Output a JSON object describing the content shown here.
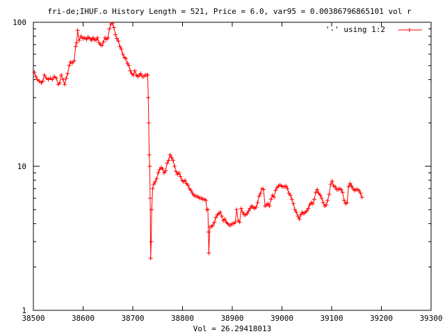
{
  "chart_data": {
    "type": "line",
    "title": "fri-de;IHUF.o History Length = 521, Price = 6.0, var95 = 0.00386796865101 vol r",
    "xlabel": "Vol = 26.29418013",
    "ylabel": "",
    "yscale": "log",
    "xlim": [
      38500,
      39300
    ],
    "ylim": [
      1,
      100
    ],
    "x_ticks": [
      "38500",
      "38600",
      "38700",
      "38800",
      "38900",
      "39000",
      "39100",
      "39200",
      "39300"
    ],
    "y_ticks": [
      "1",
      "10",
      "100"
    ],
    "grid": false,
    "legend_position": "top-right",
    "series": [
      {
        "name": "'-' using 1:2",
        "color": "#ff0000",
        "marker": "plus",
        "points": [
          [
            38502,
            45
          ],
          [
            38505,
            42
          ],
          [
            38508,
            40
          ],
          [
            38512,
            39
          ],
          [
            38516,
            38
          ],
          [
            38519,
            39
          ],
          [
            38522,
            43
          ],
          [
            38526,
            41
          ],
          [
            38530,
            40
          ],
          [
            38534,
            41
          ],
          [
            38538,
            40
          ],
          [
            38542,
            42
          ],
          [
            38546,
            41
          ],
          [
            38550,
            37
          ],
          [
            38553,
            38
          ],
          [
            38556,
            43
          ],
          [
            38560,
            40
          ],
          [
            38563,
            37
          ],
          [
            38566,
            41
          ],
          [
            38569,
            44
          ],
          [
            38572,
            50
          ],
          [
            38575,
            53
          ],
          [
            38578,
            52
          ],
          [
            38582,
            54
          ],
          [
            38585,
            68
          ],
          [
            38587,
            72
          ],
          [
            38589,
            88
          ],
          [
            38592,
            75
          ],
          [
            38596,
            80
          ],
          [
            38600,
            77
          ],
          [
            38603,
            78
          ],
          [
            38607,
            76
          ],
          [
            38610,
            79
          ],
          [
            38614,
            77
          ],
          [
            38617,
            75
          ],
          [
            38620,
            78
          ],
          [
            38623,
            76
          ],
          [
            38626,
            75
          ],
          [
            38629,
            78
          ],
          [
            38632,
            72
          ],
          [
            38635,
            70
          ],
          [
            38638,
            69
          ],
          [
            38641,
            73
          ],
          [
            38644,
            78
          ],
          [
            38647,
            76
          ],
          [
            38650,
            78
          ],
          [
            38653,
            90
          ],
          [
            38656,
            97
          ],
          [
            38659,
            98
          ],
          [
            38662,
            92
          ],
          [
            38665,
            82
          ],
          [
            38668,
            77
          ],
          [
            38671,
            74
          ],
          [
            38674,
            68
          ],
          [
            38677,
            65
          ],
          [
            38680,
            60
          ],
          [
            38683,
            57
          ],
          [
            38686,
            56
          ],
          [
            38689,
            52
          ],
          [
            38692,
            50
          ],
          [
            38695,
            46
          ],
          [
            38698,
            44
          ],
          [
            38701,
            43
          ],
          [
            38704,
            46
          ],
          [
            38707,
            43
          ],
          [
            38710,
            42
          ],
          [
            38713,
            43
          ],
          [
            38716,
            44
          ],
          [
            38719,
            42
          ],
          [
            38722,
            42
          ],
          [
            38725,
            43
          ],
          [
            38728,
            43
          ],
          [
            38730,
            43
          ],
          [
            38731,
            30
          ],
          [
            38732,
            20
          ],
          [
            38733,
            12
          ],
          [
            38734,
            10
          ],
          [
            38735,
            6
          ],
          [
            38736,
            2.3
          ],
          [
            38737,
            3
          ],
          [
            38738,
            5
          ],
          [
            38740,
            7
          ],
          [
            38742,
            7.5
          ],
          [
            38745,
            7.8
          ],
          [
            38748,
            8.2
          ],
          [
            38751,
            9
          ],
          [
            38754,
            9.5
          ],
          [
            38757,
            9.8
          ],
          [
            38760,
            9.6
          ],
          [
            38763,
            9
          ],
          [
            38766,
            9.3
          ],
          [
            38769,
            10.5
          ],
          [
            38772,
            11
          ],
          [
            38775,
            12
          ],
          [
            38778,
            11.5
          ],
          [
            38781,
            11
          ],
          [
            38784,
            10
          ],
          [
            38787,
            9.2
          ],
          [
            38790,
            8.8
          ],
          [
            38793,
            9
          ],
          [
            38796,
            8.5
          ],
          [
            38799,
            8
          ],
          [
            38802,
            7.8
          ],
          [
            38805,
            8
          ],
          [
            38808,
            7.6
          ],
          [
            38811,
            7.4
          ],
          [
            38814,
            7
          ],
          [
            38817,
            6.8
          ],
          [
            38820,
            6.5
          ],
          [
            38823,
            6.3
          ],
          [
            38826,
            6.2
          ],
          [
            38829,
            6.2
          ],
          [
            38832,
            6.1
          ],
          [
            38835,
            6
          ],
          [
            38838,
            6
          ],
          [
            38841,
            5.9
          ],
          [
            38844,
            5.9
          ],
          [
            38847,
            5.8
          ],
          [
            38849,
            5
          ],
          [
            38851,
            5
          ],
          [
            38852,
            3.5
          ],
          [
            38853,
            2.5
          ],
          [
            38855,
            3.8
          ],
          [
            38858,
            3.8
          ],
          [
            38861,
            3.9
          ],
          [
            38864,
            4.1
          ],
          [
            38867,
            4.4
          ],
          [
            38870,
            4.6
          ],
          [
            38873,
            4.7
          ],
          [
            38876,
            4.8
          ],
          [
            38879,
            4.5
          ],
          [
            38882,
            4.2
          ],
          [
            38885,
            4.3
          ],
          [
            38888,
            4.1
          ],
          [
            38891,
            4
          ],
          [
            38894,
            3.9
          ],
          [
            38897,
            3.9
          ],
          [
            38900,
            4
          ],
          [
            38903,
            4
          ],
          [
            38906,
            4.1
          ],
          [
            38909,
            5
          ],
          [
            38912,
            4.2
          ],
          [
            38915,
            4.1
          ],
          [
            38918,
            5.1
          ],
          [
            38921,
            4.8
          ],
          [
            38924,
            4.6
          ],
          [
            38927,
            4.6
          ],
          [
            38930,
            4.7
          ],
          [
            38933,
            4.9
          ],
          [
            38936,
            5.1
          ],
          [
            38939,
            5.3
          ],
          [
            38942,
            5.2
          ],
          [
            38945,
            5.1
          ],
          [
            38948,
            5.2
          ],
          [
            38951,
            5.6
          ],
          [
            38954,
            6.2
          ],
          [
            38957,
            6.5
          ],
          [
            38960,
            7
          ],
          [
            38963,
            6.9
          ],
          [
            38966,
            5.3
          ],
          [
            38969,
            5.4
          ],
          [
            38972,
            5.5
          ],
          [
            38975,
            5.3
          ],
          [
            38978,
            5.9
          ],
          [
            38981,
            6.3
          ],
          [
            38984,
            6.1
          ],
          [
            38987,
            6.8
          ],
          [
            38990,
            7.1
          ],
          [
            38993,
            7.3
          ],
          [
            38996,
            7.4
          ],
          [
            38999,
            7.3
          ],
          [
            39002,
            7.2
          ],
          [
            39005,
            7.2
          ],
          [
            39008,
            7.3
          ],
          [
            39011,
            7
          ],
          [
            39014,
            6.5
          ],
          [
            39017,
            6.3
          ],
          [
            39020,
            5.9
          ],
          [
            39023,
            5.5
          ],
          [
            39026,
            5
          ],
          [
            39029,
            4.8
          ],
          [
            39032,
            4.5
          ],
          [
            39035,
            4.3
          ],
          [
            39038,
            4.6
          ],
          [
            39041,
            4.8
          ],
          [
            39044,
            4.7
          ],
          [
            39047,
            4.8
          ],
          [
            39050,
            4.9
          ],
          [
            39053,
            5.1
          ],
          [
            39056,
            5.4
          ],
          [
            39059,
            5.6
          ],
          [
            39062,
            5.5
          ],
          [
            39065,
            5.9
          ],
          [
            39068,
            6.6
          ],
          [
            39071,
            6.9
          ],
          [
            39074,
            6.5
          ],
          [
            39077,
            6.3
          ],
          [
            39080,
            6
          ],
          [
            39083,
            5.6
          ],
          [
            39086,
            5.3
          ],
          [
            39089,
            5.4
          ],
          [
            39092,
            5.8
          ],
          [
            39095,
            6.4
          ],
          [
            39098,
            7.5
          ],
          [
            39101,
            7.9
          ],
          [
            39104,
            7.3
          ],
          [
            39107,
            7.2
          ],
          [
            39110,
            6.9
          ],
          [
            39113,
            6.9
          ],
          [
            39116,
            7
          ],
          [
            39119,
            6.9
          ],
          [
            39122,
            6.6
          ],
          [
            39125,
            5.8
          ],
          [
            39128,
            5.5
          ],
          [
            39131,
            5.6
          ],
          [
            39134,
            7.2
          ],
          [
            39137,
            7.6
          ],
          [
            39140,
            7.3
          ],
          [
            39143,
            7
          ],
          [
            39146,
            6.8
          ],
          [
            39149,
            6.9
          ],
          [
            39152,
            6.9
          ],
          [
            39155,
            6.8
          ],
          [
            39158,
            6.5
          ],
          [
            39161,
            6.1
          ]
        ]
      }
    ]
  }
}
